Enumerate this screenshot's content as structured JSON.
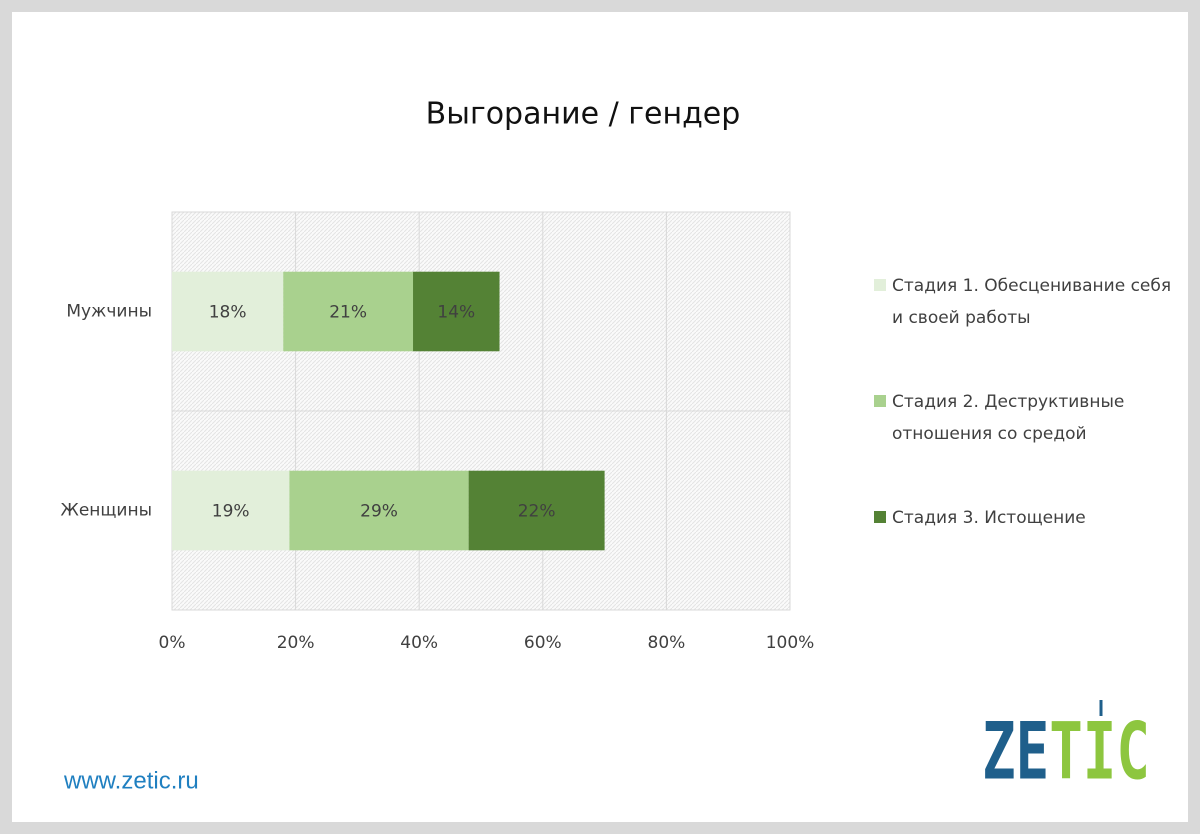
{
  "chart_data": {
    "type": "stacked-barh",
    "title": "Выгорание / гендер",
    "categories": [
      "Мужчины",
      "Женщины"
    ],
    "series": [
      {
        "name": "Стадия 1.  Обесценивание себя и своей работы",
        "color": "#e2efda",
        "values": [
          18,
          19
        ],
        "value_labels": [
          "18%",
          "19%"
        ]
      },
      {
        "name": "Стадия 2.  Деструктивные отношения со средой",
        "color": "#a9d18e",
        "values": [
          21,
          29
        ],
        "value_labels": [
          "21%",
          "29%"
        ]
      },
      {
        "name": "Стадия 3.  Истощение",
        "color": "#548235",
        "values": [
          14,
          22
        ],
        "value_labels": [
          "14%",
          "22%"
        ]
      }
    ],
    "xlim": [
      0,
      100
    ],
    "xticks": [
      {
        "value": 0,
        "label": "0%"
      },
      {
        "value": 20,
        "label": "20%"
      },
      {
        "value": 40,
        "label": "40%"
      },
      {
        "value": 60,
        "label": "60%"
      },
      {
        "value": 80,
        "label": "80%"
      },
      {
        "value": 100,
        "label": "100%"
      }
    ],
    "grid": true,
    "legend": "right"
  },
  "footer": {
    "url": "www.zetic.ru",
    "logo": "ZETIC"
  }
}
